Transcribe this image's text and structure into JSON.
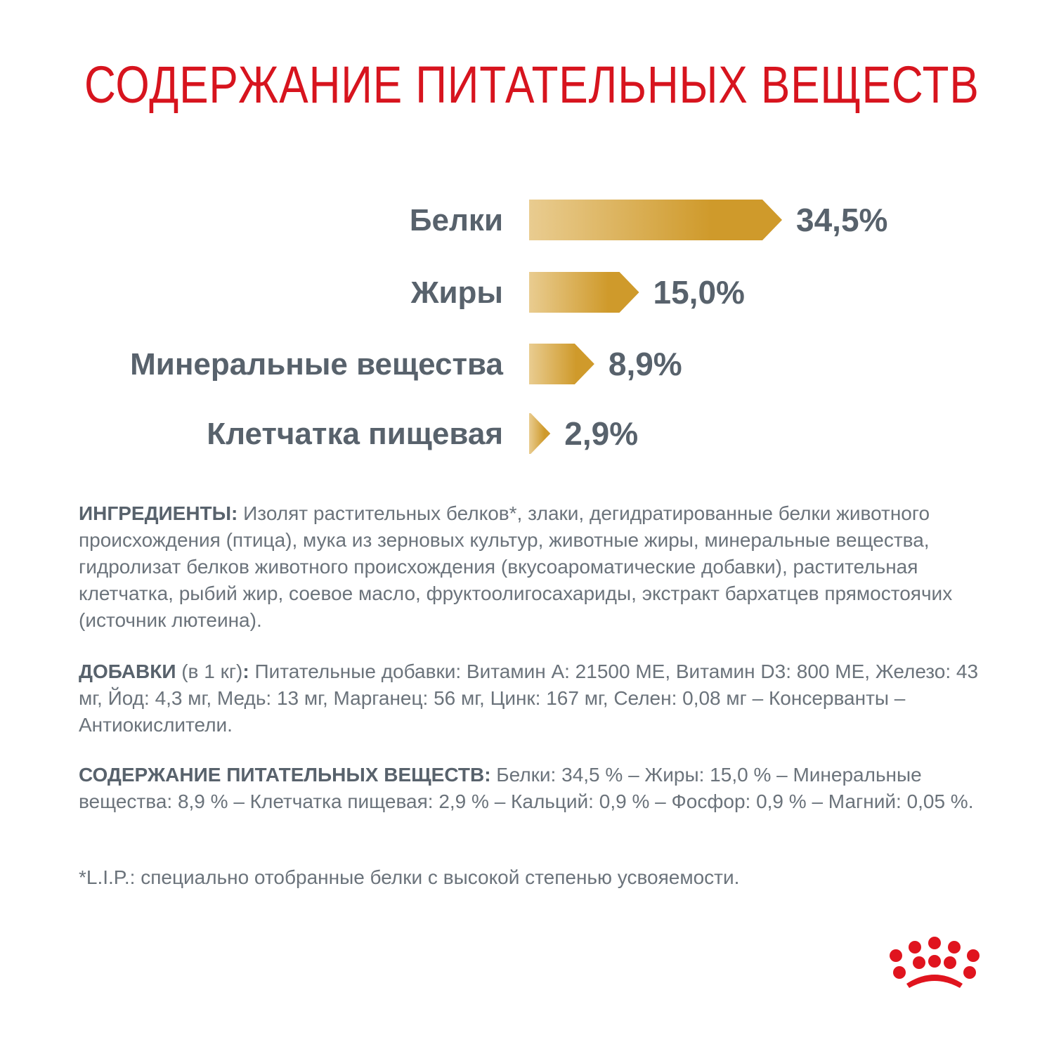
{
  "title": "СОДЕРЖАНИЕ ПИТАТЕЛЬНЫХ ВЕЩЕСТВ",
  "colors": {
    "title": "#d7141e",
    "label": "#58626c",
    "body": "#6b737b",
    "bar_light": "#e9cc90",
    "bar_dark": "#cf9a2b",
    "logo": "#e0141e"
  },
  "chart_data": {
    "type": "bar",
    "orientation": "horizontal",
    "categories": [
      "Белки",
      "Жиры",
      "Минеральные вещества",
      "Клетчатка пищевая"
    ],
    "values": [
      34.5,
      15.0,
      8.9,
      2.9
    ],
    "value_labels": [
      "34,5%",
      "15,0%",
      "8,9%",
      "2,9%"
    ],
    "unit": "%",
    "xlim": [
      0,
      34.5
    ],
    "grid": false,
    "axes_visible": false
  },
  "ingredients": {
    "label": "ИНГРЕДИЕНТЫ:",
    "text": " Изолят растительных белков*, злаки, дегидратированные белки животного происхождения (птица), мука из зерновых культур, животные жиры, минеральные вещества, гидролизат белков животного происхождения (вкусоароматические добавки), растительная клетчатка, рыбий жир, соевое масло, фруктоолигосахариды, экстракт бархатцев прямостоячих (источник лютеина)."
  },
  "additives": {
    "label": "ДОБАВКИ",
    "unit_note": " (в 1 кг)",
    "colon": ":",
    "text": " Питательные добавки: Витамин А: 21500 МЕ, Витамин D3: 800 МЕ, Железо: 43 мг, Йод: 4,3 мг, Медь: 13 мг, Марганец: 56 мг, Цинк: 167 мг, Селен: 0,08 мг – Консерванты – Антиокислители."
  },
  "nutrients": {
    "label": "СОДЕРЖАНИЕ ПИТАТЕЛЬНЫХ ВЕЩЕСТВ:",
    "text": " Белки: 34,5 % – Жиры: 15,0 % – Минеральные вещества: 8,9 % – Клетчатка пищевая: 2,9 % – Кальций: 0,9 % – Фосфор: 0,9 % – Магний: 0,05 %."
  },
  "footnote": "*L.I.P.: специально отобранные белки с высокой степенью усвояемости.",
  "logo": {
    "icon": "crown-icon"
  }
}
